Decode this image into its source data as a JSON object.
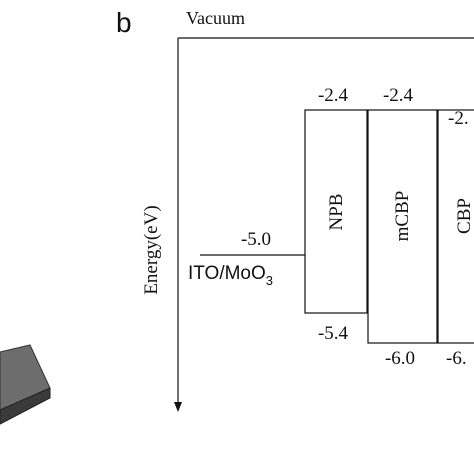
{
  "panel_label": "b",
  "axis": {
    "top_label": "Vacuum",
    "y_label": "Energy(eV)"
  },
  "anode": {
    "name": "ITO/MoO",
    "name_sub": "3",
    "level": "-5.0"
  },
  "layers": [
    {
      "name": "NPB",
      "lumo": "-2.4",
      "homo": "-5.4"
    },
    {
      "name": "mCBP",
      "lumo": "-2.4",
      "homo": "-6.0"
    },
    {
      "name": "CBP",
      "lumo": "-2.",
      "homo": "-6."
    }
  ]
}
